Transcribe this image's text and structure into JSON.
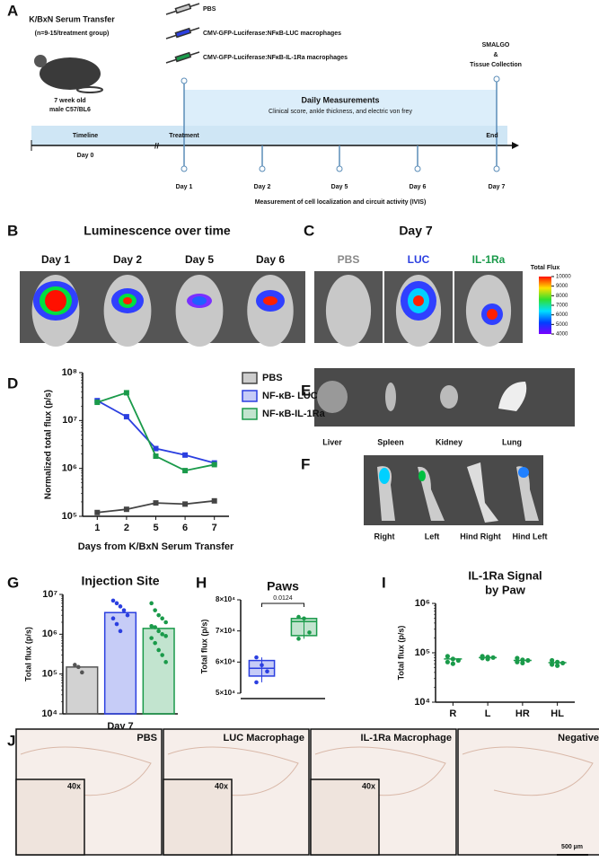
{
  "panel_letters": [
    "A",
    "B",
    "C",
    "D",
    "E",
    "F",
    "G",
    "H",
    "I",
    "J"
  ],
  "timeline": {
    "title": "K/BxN Serum Transfer",
    "subtitle": "(n=9-15/treatment group)",
    "mouse": [
      "7 week old",
      "male C57/BL6"
    ],
    "treatments": [
      "PBS",
      "CMV-GFP-Luciferase:NFκB-LUC macrophages",
      "CMV-GFP-Luciferase:NFκB-IL-1Ra macrophages"
    ],
    "endpoint": [
      "SMALGO",
      "&",
      "Tissue Collection"
    ],
    "daily": "Daily Measurements",
    "daily_detail": "Clinical score, ankle thickness, and electric von frey",
    "bar_labels": [
      "Timeline",
      "Treatment",
      "End"
    ],
    "start": "Day 0",
    "days": [
      "Day 1",
      "Day 2",
      "Day 5",
      "Day 6",
      "Day 7"
    ],
    "imaging": "Measurement of cell localization and circuit activity (IVIS)"
  },
  "luminescence": {
    "title": "Luminescence over time",
    "days": [
      "Day 1",
      "Day 2",
      "Day 5",
      "Day 6"
    ]
  },
  "day7": {
    "title": "Day 7",
    "groups": [
      "PBS",
      "LUC",
      "IL-1Ra"
    ],
    "colorbar": {
      "title": "Total Flux",
      "lim": [
        4000,
        10000
      ],
      "ticks": [
        4000,
        5000,
        6000,
        7000,
        8000,
        9000,
        10000
      ]
    }
  },
  "organs": [
    "Liver",
    "Spleen",
    "Kidney",
    "Lung"
  ],
  "paws": [
    "Right",
    "Left",
    "Hind Right",
    "Hind Left"
  ],
  "histology": {
    "panels": [
      "PBS",
      "LUC Macrophage",
      "IL-1Ra Macrophage",
      "Negative"
    ],
    "inset": "40x",
    "scale": "500 µm"
  },
  "chart_data": [
    {
      "type": "line",
      "ylabel": "Normalized total flux (p/s)",
      "xlabel": "Days from K/BxN Serum Transfer",
      "categories": [
        "1",
        "2",
        "5",
        "6",
        "7"
      ],
      "log_y": true,
      "ylim": [
        100000,
        100000000
      ],
      "yticks": [
        {
          "value": 100000,
          "label": "10⁵"
        },
        {
          "value": 1000000,
          "label": "10⁶"
        },
        {
          "value": 10000000,
          "label": "10⁷"
        },
        {
          "value": 100000000,
          "label": "10⁸"
        }
      ],
      "legend": "top-right",
      "series": [
        {
          "name": "PBS",
          "color": "#444444",
          "values": [
            120000,
            140000,
            190000,
            180000,
            210000
          ]
        },
        {
          "name": "NF-κB- LUC",
          "color": "#2b3fe0",
          "values": [
            26000000,
            12000000,
            2600000,
            1900000,
            1300000
          ]
        },
        {
          "name": "NF-κB-IL-1Ra",
          "color": "#1a9a4a",
          "values": [
            24000000,
            38000000,
            1800000,
            900000,
            1200000
          ]
        }
      ]
    },
    {
      "type": "bar",
      "title": "Injection Site",
      "ylabel": "Total flux (p/s)",
      "xlabel": "Day 7",
      "log_y": true,
      "ylim": [
        10000,
        10000000
      ],
      "yticks": [
        {
          "value": 10000,
          "label": "10⁴"
        },
        {
          "value": 100000,
          "label": "10⁵"
        },
        {
          "value": 1000000,
          "label": "10⁶"
        },
        {
          "value": 10000000,
          "label": "10⁷"
        }
      ],
      "bars": [
        {
          "color": "#555555",
          "value": 150000,
          "points": [
            170000,
            150000,
            110000
          ]
        },
        {
          "color": "#2b3fe0",
          "value": 3500000,
          "points": [
            7000000,
            6000000,
            5000000,
            4000000,
            3000000,
            2500000,
            1800000,
            1200000
          ]
        },
        {
          "color": "#1a9a4a",
          "value": 1400000,
          "points": [
            6000000,
            4000000,
            3000000,
            2500000,
            2000000,
            1600000,
            1500000,
            1200000,
            1000000,
            900000,
            800000,
            600000,
            400000,
            300000,
            200000
          ]
        }
      ]
    },
    {
      "type": "box",
      "title": "Paws",
      "ylabel": "Total flux (p/s)",
      "annotation": "0.0124",
      "ylim": [
        50000,
        80000
      ],
      "yticks": [
        {
          "value": 50000,
          "label": "5×10⁴"
        },
        {
          "value": 60000,
          "label": "6×10⁴"
        },
        {
          "value": 70000,
          "label": "7×10⁴"
        },
        {
          "value": 80000,
          "label": "8×10⁴"
        }
      ],
      "boxes": [
        {
          "color": "#2b3fe0",
          "min": 53500,
          "q1": 55500,
          "median": 58000,
          "q3": 60500,
          "max": 61500,
          "points": [
            61500,
            59000,
            57000,
            53500
          ]
        },
        {
          "color": "#1a9a4a",
          "min": 67500,
          "q1": 68500,
          "median": 73000,
          "q3": 74000,
          "max": 74500,
          "points": [
            74500,
            74000,
            69500,
            67500
          ]
        }
      ]
    },
    {
      "type": "scatter",
      "title": [
        "IL-1Ra Signal",
        "by Paw"
      ],
      "ylabel": "Total flux (p/s)",
      "categories": [
        "R",
        "L",
        "HR",
        "HL"
      ],
      "color": "#1a9a4a",
      "log_y": true,
      "ylim": [
        10000,
        1000000
      ],
      "yticks": [
        {
          "value": 10000,
          "label": "10⁴"
        },
        {
          "value": 100000,
          "label": "10⁵"
        },
        {
          "value": 1000000,
          "label": "10⁶"
        }
      ],
      "values": [
        75000,
        80000,
        70000,
        63000
      ],
      "points": [
        [
          85000,
          75000,
          70000,
          65000,
          60000
        ],
        [
          85000,
          82000,
          80000,
          78000,
          75000
        ],
        [
          78000,
          72000,
          70000,
          65000,
          62000
        ],
        [
          70000,
          65000,
          62000,
          58000,
          55000
        ]
      ]
    }
  ]
}
